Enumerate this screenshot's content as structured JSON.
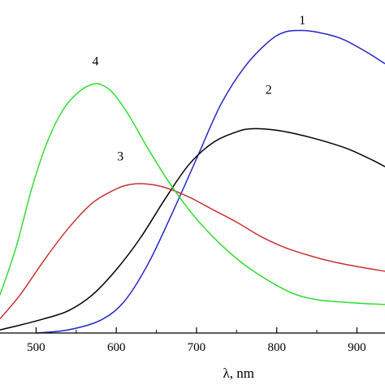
{
  "chart_data": {
    "type": "line",
    "title": "",
    "xlabel": "λ, nm",
    "ylabel": "",
    "xlim": [
      455,
      935
    ],
    "ylim": [
      0,
      1.0
    ],
    "x_ticks": [
      500,
      600,
      700,
      800,
      900
    ],
    "x_tick_labels": [
      "500",
      "600",
      "700",
      "800",
      "900"
    ],
    "grid": false,
    "legend": "none",
    "series": [
      {
        "name": "1",
        "color": "#2424c8",
        "label_at": [
          832,
          0.975
        ],
        "points": [
          [
            500,
            0.0
          ],
          [
            540,
            0.01
          ],
          [
            580,
            0.04
          ],
          [
            610,
            0.1
          ],
          [
            640,
            0.22
          ],
          [
            670,
            0.38
          ],
          [
            700,
            0.55
          ],
          [
            730,
            0.72
          ],
          [
            760,
            0.84
          ],
          [
            790,
            0.92
          ],
          [
            810,
            0.95
          ],
          [
            830,
            0.955
          ],
          [
            850,
            0.95
          ],
          [
            880,
            0.93
          ],
          [
            910,
            0.89
          ],
          [
            935,
            0.85
          ]
        ]
      },
      {
        "name": "2",
        "color": "#000000",
        "label_at": [
          790,
          0.755
        ],
        "points": [
          [
            455,
            0.01
          ],
          [
            480,
            0.025
          ],
          [
            510,
            0.045
          ],
          [
            540,
            0.07
          ],
          [
            570,
            0.12
          ],
          [
            600,
            0.2
          ],
          [
            630,
            0.3
          ],
          [
            660,
            0.42
          ],
          [
            690,
            0.53
          ],
          [
            720,
            0.6
          ],
          [
            750,
            0.635
          ],
          [
            770,
            0.645
          ],
          [
            800,
            0.64
          ],
          [
            830,
            0.625
          ],
          [
            860,
            0.605
          ],
          [
            890,
            0.58
          ],
          [
            920,
            0.545
          ],
          [
            935,
            0.525
          ]
        ]
      },
      {
        "name": "3",
        "color": "#c83232",
        "label_at": [
          605,
          0.545
        ],
        "points": [
          [
            455,
            0.045
          ],
          [
            480,
            0.12
          ],
          [
            510,
            0.23
          ],
          [
            540,
            0.33
          ],
          [
            570,
            0.41
          ],
          [
            600,
            0.455
          ],
          [
            620,
            0.47
          ],
          [
            640,
            0.47
          ],
          [
            660,
            0.46
          ],
          [
            690,
            0.43
          ],
          [
            720,
            0.39
          ],
          [
            750,
            0.35
          ],
          [
            780,
            0.305
          ],
          [
            810,
            0.27
          ],
          [
            840,
            0.245
          ],
          [
            870,
            0.225
          ],
          [
            900,
            0.21
          ],
          [
            935,
            0.195
          ]
        ]
      },
      {
        "name": "4",
        "color": "#32dc32",
        "label_at": [
          574,
          0.845
        ],
        "points": [
          [
            455,
            0.12
          ],
          [
            475,
            0.27
          ],
          [
            495,
            0.46
          ],
          [
            515,
            0.61
          ],
          [
            535,
            0.71
          ],
          [
            555,
            0.765
          ],
          [
            570,
            0.785
          ],
          [
            580,
            0.785
          ],
          [
            595,
            0.76
          ],
          [
            615,
            0.69
          ],
          [
            640,
            0.58
          ],
          [
            670,
            0.46
          ],
          [
            700,
            0.36
          ],
          [
            730,
            0.28
          ],
          [
            760,
            0.215
          ],
          [
            790,
            0.165
          ],
          [
            820,
            0.125
          ],
          [
            850,
            0.105
          ],
          [
            880,
            0.098
          ],
          [
            910,
            0.093
          ],
          [
            935,
            0.09
          ]
        ]
      }
    ]
  }
}
